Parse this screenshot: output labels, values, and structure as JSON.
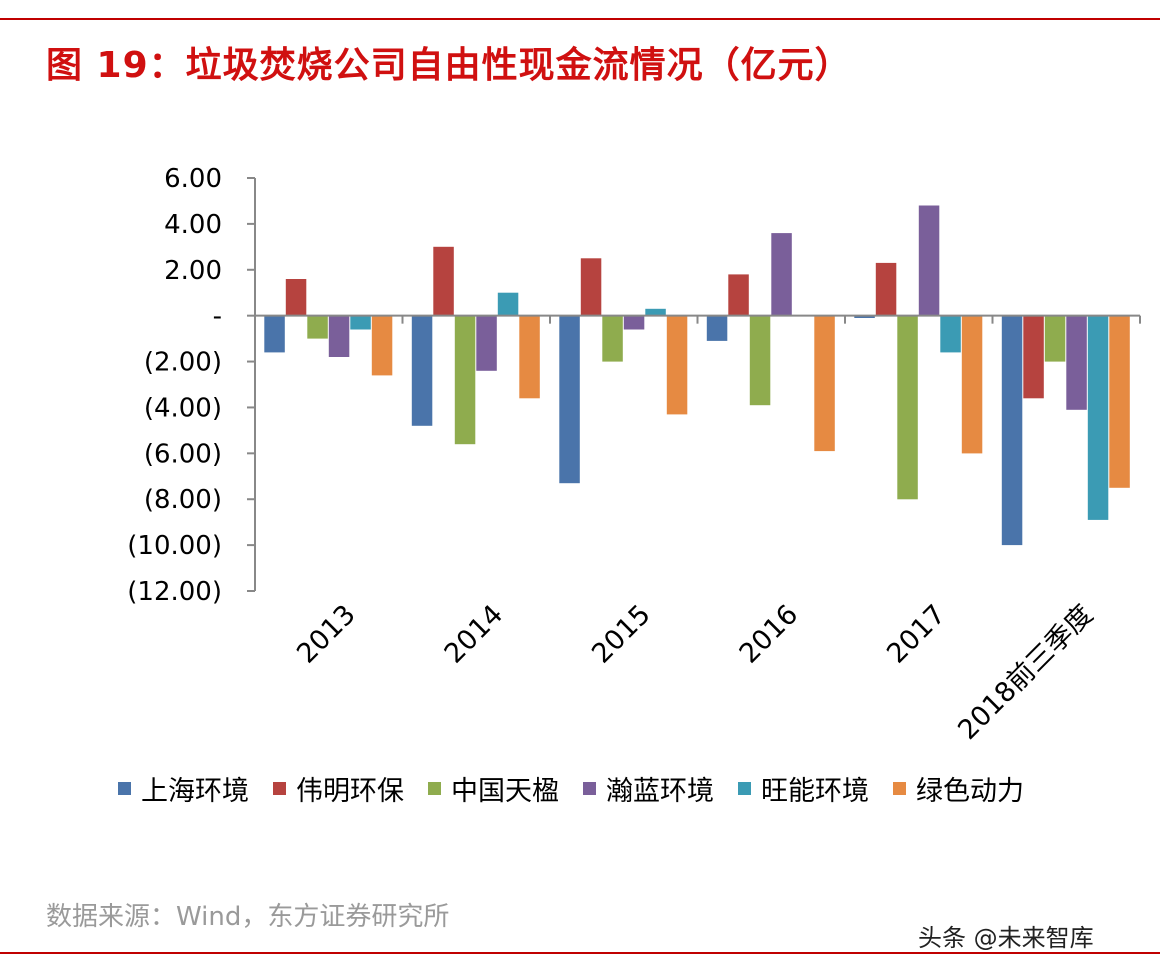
{
  "title": "图 19：垃圾焚烧公司自由性现金流情况（亿元）",
  "source": "数据来源：Wind，东方证券研究所",
  "watermark": "头条 @未来智库",
  "chart_data": {
    "type": "bar",
    "categories": [
      "2013",
      "2014",
      "2015",
      "2016",
      "2017",
      "2018前三季度"
    ],
    "ylim": [
      -12,
      6
    ],
    "yticks": [
      6,
      4,
      2,
      0,
      -2,
      -4,
      -6,
      -8,
      -10,
      -12
    ],
    "ytick_labels": [
      "6.00",
      "4.00",
      "2.00",
      "-",
      "(2.00)",
      "(4.00)",
      "(6.00)",
      "(8.00)",
      "(10.00)",
      "(12.00)"
    ],
    "series": [
      {
        "name": "上海环境",
        "color": "#4a74aa",
        "values": [
          -1.6,
          -4.8,
          -7.3,
          -1.1,
          -0.1,
          -10.0
        ]
      },
      {
        "name": "伟明环保",
        "color": "#b6433f",
        "values": [
          1.6,
          3.0,
          2.5,
          1.8,
          2.3,
          -3.6
        ]
      },
      {
        "name": "中国天楹",
        "color": "#8fac4e",
        "values": [
          -1.0,
          -5.6,
          -2.0,
          -3.9,
          -8.0,
          -2.0
        ]
      },
      {
        "name": "瀚蓝环境",
        "color": "#7a5f9a",
        "values": [
          -1.8,
          -2.4,
          -0.6,
          3.6,
          4.8,
          -4.1
        ]
      },
      {
        "name": "旺能环境",
        "color": "#3b9bb4",
        "values": [
          -0.6,
          1.0,
          0.3,
          0.0,
          -1.6,
          -8.9
        ]
      },
      {
        "name": "绿色动力",
        "color": "#e68a42",
        "values": [
          -2.6,
          -3.6,
          -4.3,
          -5.9,
          -6.0,
          -7.5
        ]
      }
    ]
  }
}
